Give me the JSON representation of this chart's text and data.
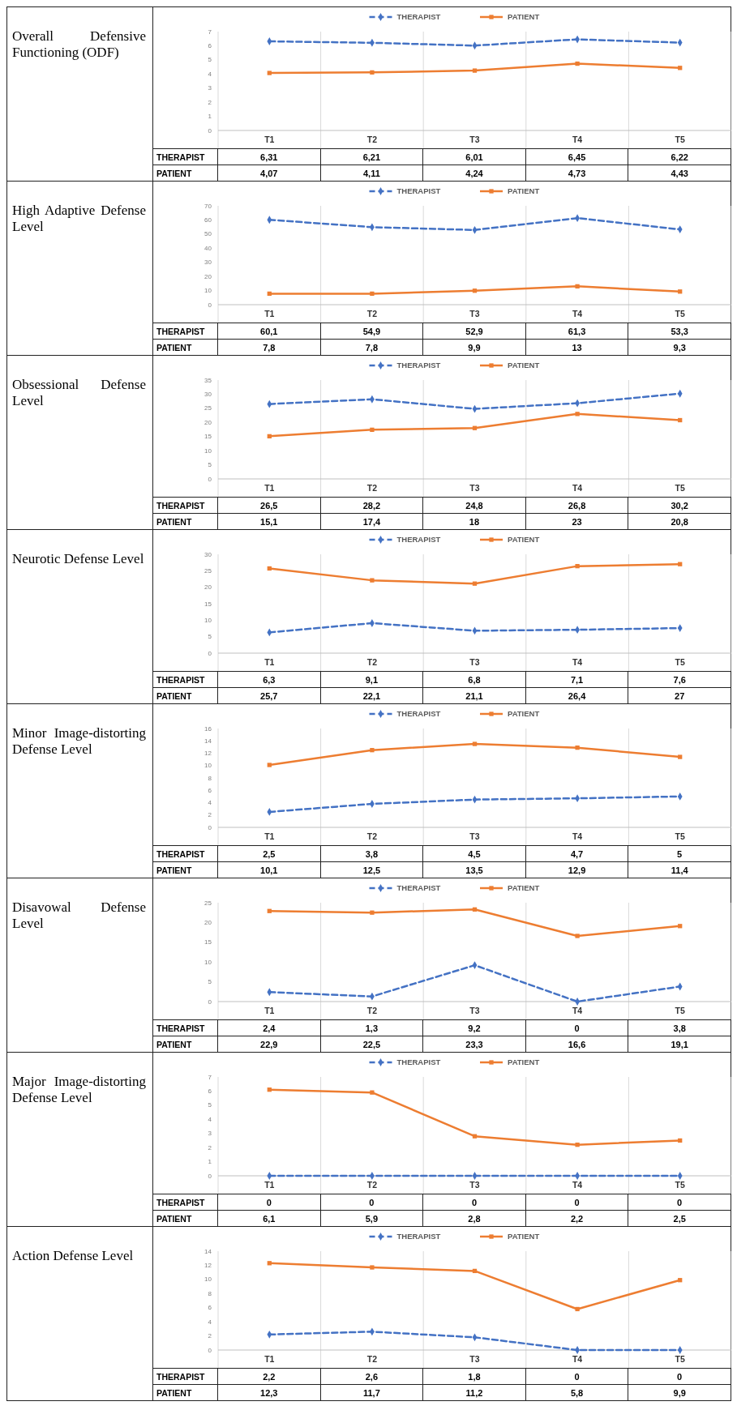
{
  "chart_data": [
    {
      "type": "line",
      "title": "Overall Defensive Functioning (ODF)",
      "categories": [
        "T1",
        "T2",
        "T3",
        "T4",
        "T5"
      ],
      "ylim": [
        0,
        7
      ],
      "yticks": [
        0,
        1,
        2,
        3,
        4,
        5,
        6,
        7
      ],
      "legend": "top",
      "grid": "x",
      "series": [
        {
          "name": "THERAPIST",
          "color": "#4472c4",
          "line_style": "dashed",
          "marker": "diamond",
          "values": [
            6.31,
            6.21,
            6.01,
            6.45,
            6.22
          ],
          "value_labels": [
            "6,31",
            "6,21",
            "6,01",
            "6,45",
            "6,22"
          ]
        },
        {
          "name": "PATIENT",
          "color": "#ed7d31",
          "line_style": "solid",
          "marker": "square",
          "values": [
            4.07,
            4.11,
            4.24,
            4.73,
            4.43
          ],
          "value_labels": [
            "4,07",
            "4,11",
            "4,24",
            "4,73",
            "4,43"
          ]
        }
      ]
    },
    {
      "type": "line",
      "title": "High Adaptive Defense Level",
      "categories": [
        "T1",
        "T2",
        "T3",
        "T4",
        "T5"
      ],
      "ylim": [
        0,
        70
      ],
      "yticks": [
        0,
        10,
        20,
        30,
        40,
        50,
        60,
        70
      ],
      "legend": "top",
      "grid": "x",
      "series": [
        {
          "name": "THERAPIST",
          "color": "#4472c4",
          "line_style": "dashed",
          "marker": "diamond",
          "values": [
            60.1,
            54.9,
            52.9,
            61.3,
            53.3
          ],
          "value_labels": [
            "60,1",
            "54,9",
            "52,9",
            "61,3",
            "53,3"
          ]
        },
        {
          "name": "PATIENT",
          "color": "#ed7d31",
          "line_style": "solid",
          "marker": "square",
          "values": [
            7.8,
            7.8,
            9.9,
            13,
            9.3
          ],
          "value_labels": [
            "7,8",
            "7,8",
            "9,9",
            "13",
            "9,3"
          ]
        }
      ]
    },
    {
      "type": "line",
      "title": "Obsessional Defense Level",
      "categories": [
        "T1",
        "T2",
        "T3",
        "T4",
        "T5"
      ],
      "ylim": [
        0,
        35
      ],
      "yticks": [
        0,
        5,
        10,
        15,
        20,
        25,
        30,
        35
      ],
      "legend": "top",
      "grid": "x",
      "series": [
        {
          "name": "THERAPIST",
          "color": "#4472c4",
          "line_style": "dashed",
          "marker": "diamond",
          "values": [
            26.5,
            28.2,
            24.8,
            26.8,
            30.2
          ],
          "value_labels": [
            "26,5",
            "28,2",
            "24,8",
            "26,8",
            "30,2"
          ]
        },
        {
          "name": "PATIENT",
          "color": "#ed7d31",
          "line_style": "solid",
          "marker": "square",
          "values": [
            15.1,
            17.4,
            18,
            23,
            20.8
          ],
          "value_labels": [
            "15,1",
            "17,4",
            "18",
            "23",
            "20,8"
          ]
        }
      ]
    },
    {
      "type": "line",
      "title": "Neurotic Defense Level",
      "categories": [
        "T1",
        "T2",
        "T3",
        "T4",
        "T5"
      ],
      "ylim": [
        0,
        30
      ],
      "yticks": [
        0,
        5,
        10,
        15,
        20,
        25,
        30
      ],
      "legend": "top",
      "grid": "x",
      "series": [
        {
          "name": "THERAPIST",
          "color": "#4472c4",
          "line_style": "dashed",
          "marker": "diamond",
          "values": [
            6.3,
            9.1,
            6.8,
            7.1,
            7.6
          ],
          "value_labels": [
            "6,3",
            "9,1",
            "6,8",
            "7,1",
            "7,6"
          ]
        },
        {
          "name": "PATIENT",
          "color": "#ed7d31",
          "line_style": "solid",
          "marker": "square",
          "values": [
            25.7,
            22.1,
            21.1,
            26.4,
            27
          ],
          "value_labels": [
            "25,7",
            "22,1",
            "21,1",
            "26,4",
            "27"
          ]
        }
      ]
    },
    {
      "type": "line",
      "title": "Minor Image-distorting Defense Level",
      "categories": [
        "T1",
        "T2",
        "T3",
        "T4",
        "T5"
      ],
      "ylim": [
        0,
        16
      ],
      "yticks": [
        0,
        2,
        4,
        6,
        8,
        10,
        12,
        14,
        16
      ],
      "legend": "top",
      "grid": "x",
      "series": [
        {
          "name": "THERAPIST",
          "color": "#4472c4",
          "line_style": "dashed",
          "marker": "diamond",
          "values": [
            2.5,
            3.8,
            4.5,
            4.7,
            5
          ],
          "value_labels": [
            "2,5",
            "3,8",
            "4,5",
            "4,7",
            "5"
          ]
        },
        {
          "name": "PATIENT",
          "color": "#ed7d31",
          "line_style": "solid",
          "marker": "square",
          "values": [
            10.1,
            12.5,
            13.5,
            12.9,
            11.4
          ],
          "value_labels": [
            "10,1",
            "12,5",
            "13,5",
            "12,9",
            "11,4"
          ]
        }
      ]
    },
    {
      "type": "line",
      "title": "Disavowal Defense Level",
      "categories": [
        "T1",
        "T2",
        "T3",
        "T4",
        "T5"
      ],
      "ylim": [
        0,
        25
      ],
      "yticks": [
        0,
        5,
        10,
        15,
        20,
        25
      ],
      "legend": "top",
      "grid": "x",
      "series": [
        {
          "name": "THERAPIST",
          "color": "#4472c4",
          "line_style": "dashed",
          "marker": "diamond",
          "values": [
            2.4,
            1.3,
            9.2,
            0,
            3.8
          ],
          "value_labels": [
            "2,4",
            "1,3",
            "9,2",
            "0",
            "3,8"
          ]
        },
        {
          "name": "PATIENT",
          "color": "#ed7d31",
          "line_style": "solid",
          "marker": "square",
          "values": [
            22.9,
            22.5,
            23.3,
            16.6,
            19.1
          ],
          "value_labels": [
            "22,9",
            "22,5",
            "23,3",
            "16,6",
            "19,1"
          ]
        }
      ]
    },
    {
      "type": "line",
      "title": "Major Image-distorting Defense Level",
      "categories": [
        "T1",
        "T2",
        "T3",
        "T4",
        "T5"
      ],
      "ylim": [
        0,
        7
      ],
      "yticks": [
        0,
        1,
        2,
        3,
        4,
        5,
        6,
        7
      ],
      "legend": "top",
      "grid": "x",
      "series": [
        {
          "name": "THERAPIST",
          "color": "#4472c4",
          "line_style": "dashed",
          "marker": "diamond",
          "values": [
            0,
            0,
            0,
            0,
            0
          ],
          "value_labels": [
            "0",
            "0",
            "0",
            "0",
            "0"
          ]
        },
        {
          "name": "PATIENT",
          "color": "#ed7d31",
          "line_style": "solid",
          "marker": "square",
          "values": [
            6.1,
            5.9,
            2.8,
            2.2,
            2.5
          ],
          "value_labels": [
            "6,1",
            "5,9",
            "2,8",
            "2,2",
            "2,5"
          ]
        }
      ]
    },
    {
      "type": "line",
      "title": "Action Defense Level",
      "categories": [
        "T1",
        "T2",
        "T3",
        "T4",
        "T5"
      ],
      "ylim": [
        0,
        14
      ],
      "yticks": [
        0,
        2,
        4,
        6,
        8,
        10,
        12,
        14
      ],
      "legend": "top",
      "grid": "x",
      "series": [
        {
          "name": "THERAPIST",
          "color": "#4472c4",
          "line_style": "dashed",
          "marker": "diamond",
          "values": [
            2.2,
            2.6,
            1.8,
            0,
            0
          ],
          "value_labels": [
            "2,2",
            "2,6",
            "1,8",
            "0",
            "0"
          ]
        },
        {
          "name": "PATIENT",
          "color": "#ed7d31",
          "line_style": "solid",
          "marker": "square",
          "values": [
            12.3,
            11.7,
            11.2,
            5.8,
            9.9
          ],
          "value_labels": [
            "12,3",
            "11,7",
            "11,2",
            "5,8",
            "9,9"
          ]
        }
      ]
    }
  ]
}
